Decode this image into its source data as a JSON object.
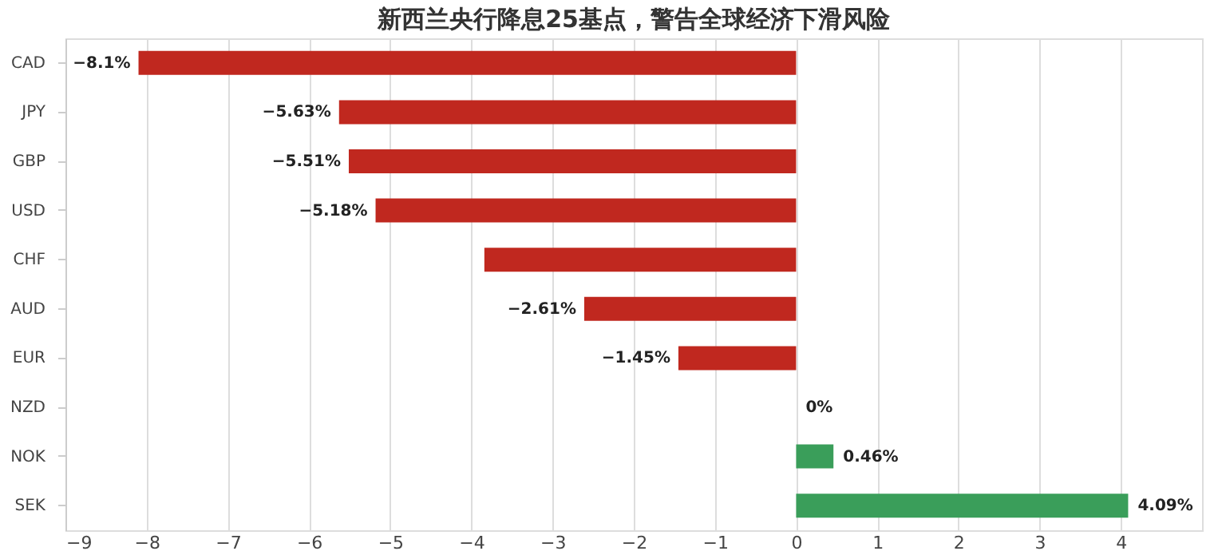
{
  "chart_data": {
    "type": "bar",
    "orientation": "horizontal",
    "title": "新西兰央行降息25基点，警告全球经济下滑风险",
    "categories": [
      "CAD",
      "JPY",
      "GBP",
      "USD",
      "CHF",
      "AUD",
      "EUR",
      "NZD",
      "NOK",
      "SEK"
    ],
    "values": [
      -8.1,
      -5.63,
      -5.51,
      -5.18,
      -3.84,
      -2.61,
      -1.45,
      0,
      0.46,
      4.09
    ],
    "colors": [
      "#c0281f",
      "#c0281f",
      "#c0281f",
      "#c0281f",
      "#c0281f",
      "#c0281f",
      "#c0281f",
      "#3a9e5a",
      "#3a9e5a",
      "#3a9e5a"
    ],
    "value_labels": [
      "−8.1%",
      "−5.63%",
      "−5.51%",
      "−5.18%",
      null,
      "−2.61%",
      "−1.45%",
      "0%",
      "0.46%",
      "4.09%"
    ],
    "xlim": [
      -9,
      5
    ],
    "xticks": [
      {
        "value": -9,
        "label": "−9"
      },
      {
        "value": -8,
        "label": "−8"
      },
      {
        "value": -7,
        "label": "−7"
      },
      {
        "value": -6,
        "label": "−6"
      },
      {
        "value": -5,
        "label": "−5"
      },
      {
        "value": -4,
        "label": "−4"
      },
      {
        "value": -3,
        "label": "−3"
      },
      {
        "value": -2,
        "label": "−2"
      },
      {
        "value": -1,
        "label": "−1"
      },
      0,
      1,
      2,
      3,
      4
    ],
    "grid": "x"
  }
}
